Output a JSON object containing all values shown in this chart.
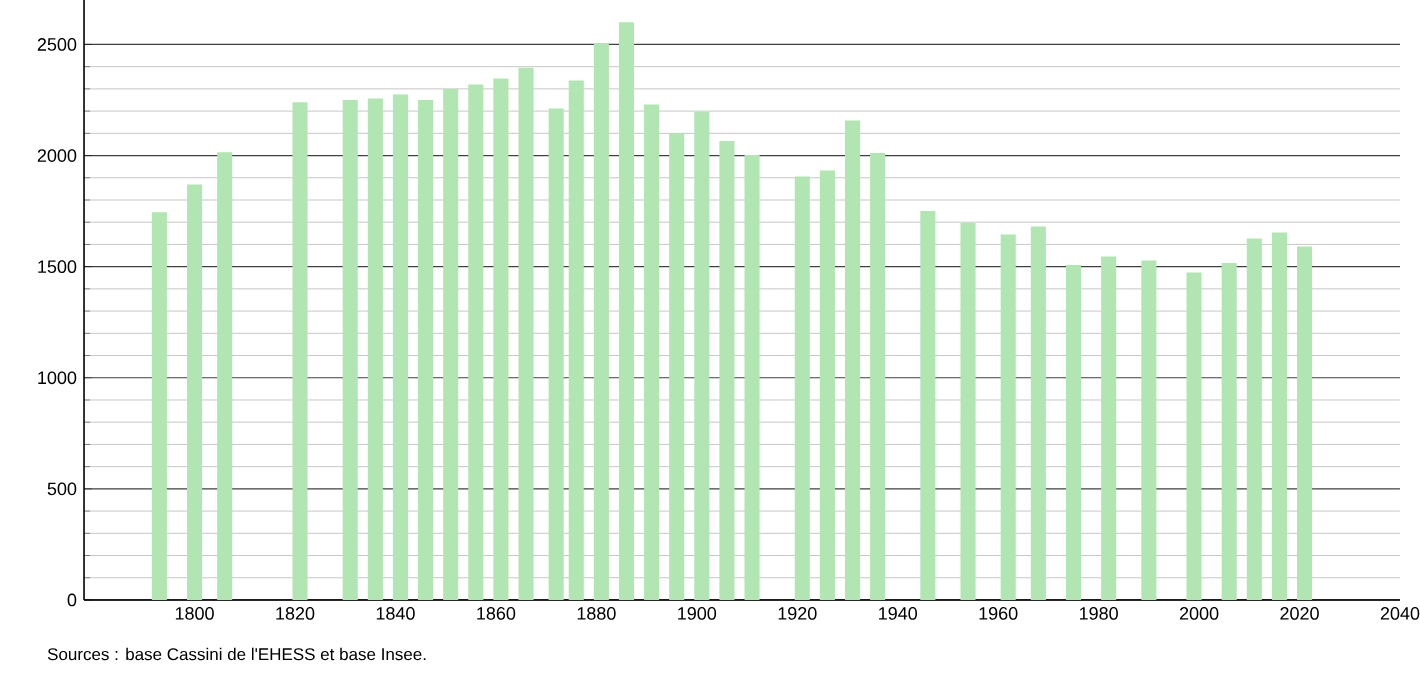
{
  "chart_data": {
    "type": "bar",
    "x": [
      1793,
      1800,
      1806,
      1821,
      1831,
      1836,
      1841,
      1846,
      1851,
      1856,
      1861,
      1866,
      1872,
      1876,
      1881,
      1886,
      1891,
      1896,
      1901,
      1906,
      1911,
      1921,
      1926,
      1931,
      1936,
      1946,
      1954,
      1962,
      1968,
      1975,
      1982,
      1990,
      1999,
      2006,
      2011,
      2016,
      2021
    ],
    "values": [
      1745,
      1870,
      2015,
      2240,
      2250,
      2257,
      2275,
      2250,
      2300,
      2320,
      2347,
      2395,
      2212,
      2338,
      2505,
      2600,
      2230,
      2100,
      2197,
      2065,
      2002,
      1906,
      1933,
      2158,
      2011,
      1750,
      1696,
      1645,
      1681,
      1507,
      1546,
      1528,
      1474,
      1516,
      1627,
      1654,
      1591
    ],
    "color": "#b1e5b1",
    "xlim": [
      1778,
      2040
    ],
    "xticks": [
      1800,
      1820,
      1840,
      1860,
      1880,
      1900,
      1920,
      1940,
      1960,
      1980,
      2000,
      2020,
      2040
    ],
    "ylim": [
      0,
      2700
    ],
    "yticks": [
      0,
      500,
      1000,
      1500,
      2000,
      2500
    ],
    "grid": "y",
    "annotations": [
      "Sources : base Cassini de l'EHESS et base Insee."
    ]
  }
}
